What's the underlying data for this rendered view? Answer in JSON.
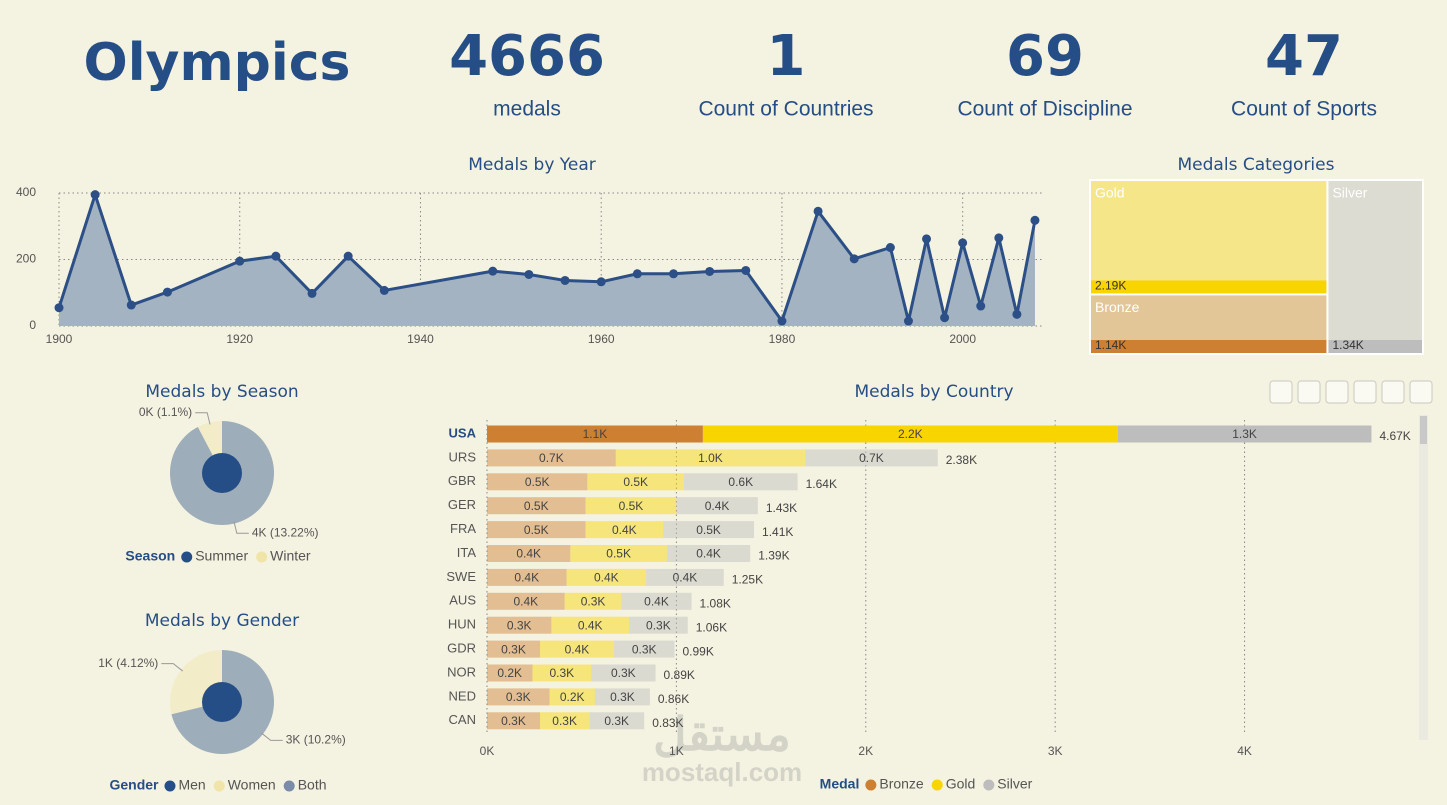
{
  "title": "Olympics",
  "kpis": [
    {
      "value": 4666,
      "label": "medals"
    },
    {
      "value": 1,
      "label": "Count of Countries"
    },
    {
      "value": 69,
      "label": "Count of Discipline"
    },
    {
      "value": 47,
      "label": "Count of Sports"
    }
  ],
  "watermark": [
    "مستقل",
    "mostaql.com"
  ],
  "chart_data": [
    {
      "type": "line",
      "title": "Medals by Year",
      "x": [
        1900,
        1904,
        1908,
        1912,
        1920,
        1924,
        1928,
        1932,
        1936,
        1948,
        1952,
        1956,
        1960,
        1964,
        1968,
        1972,
        1976,
        1980,
        1984,
        1988,
        1992,
        1994,
        1996,
        1998,
        2000,
        2002,
        2004,
        2006,
        2008
      ],
      "values": [
        55,
        395,
        63,
        102,
        195,
        210,
        98,
        210,
        107,
        165,
        155,
        137,
        133,
        157,
        157,
        164,
        167,
        15,
        345,
        202,
        236,
        15,
        262,
        25,
        250,
        60,
        265,
        35,
        318
      ],
      "color": "#2b4f86",
      "fill": "#a3b3c1",
      "xlim": [
        1900,
        2009
      ],
      "ylim": [
        0,
        400
      ],
      "xticks": [
        1900,
        1920,
        1940,
        1960,
        1980,
        2000
      ],
      "yticks": [
        0,
        200,
        400
      ],
      "grid": true
    },
    {
      "type": "treemap",
      "title": "Medals Categories",
      "categories": [
        "Gold",
        "Silver",
        "Bronze"
      ],
      "values": [
        2190,
        1340,
        1140
      ],
      "value_labels": [
        "2.19K",
        "1.34K",
        "1.14K"
      ],
      "colors": [
        "#f5e68a",
        "#dcdcd2",
        "#e2c697"
      ],
      "accent_colors": [
        "#f8d400",
        "#bdbdbd",
        "#cd7f32"
      ]
    },
    {
      "type": "pie",
      "title": "Medals by Season",
      "legend_title": "Season",
      "categories": [
        "Summer",
        "Winter"
      ],
      "values": [
        13.22,
        1.1
      ],
      "value_labels": [
        "4K (13.22%)",
        "0K (1.1%)"
      ],
      "colors": [
        "#264e86",
        "#f0e4a8"
      ]
    },
    {
      "type": "pie",
      "title": "Medals by Gender",
      "legend_title": "Gender",
      "categories": [
        "Men",
        "Women",
        "Both"
      ],
      "values": [
        10.2,
        4.12,
        null
      ],
      "value_labels": [
        "3K (10.2%)",
        "1K (4.12%)",
        null
      ],
      "colors": [
        "#264e86",
        "#f0e4a8",
        "#7a8ca8"
      ]
    },
    {
      "type": "bar",
      "orientation": "horizontal",
      "stacked": true,
      "title": "Medals by Country",
      "legend_title": "Medal",
      "categories": [
        "USA",
        "URS",
        "GBR",
        "GER",
        "FRA",
        "ITA",
        "SWE",
        "AUS",
        "HUN",
        "GDR",
        "NOR",
        "NED",
        "CAN"
      ],
      "selected": "USA",
      "series": [
        {
          "name": "Bronze",
          "color": "#cd7f32",
          "values": [
            1140,
            680,
            530,
            520,
            520,
            440,
            420,
            410,
            340,
            280,
            240,
            330,
            280
          ],
          "value_labels": [
            "1.1K",
            "0.7K",
            "0.5K",
            "0.5K",
            "0.5K",
            "0.4K",
            "0.4K",
            "0.4K",
            "0.3K",
            "0.3K",
            "0.2K",
            "0.3K",
            "0.3K"
          ]
        },
        {
          "name": "Gold",
          "color": "#f8d400",
          "values": [
            2190,
            1000,
            510,
            480,
            410,
            510,
            420,
            300,
            410,
            390,
            310,
            240,
            260
          ],
          "value_labels": [
            "2.2K",
            "1.0K",
            "0.5K",
            "0.5K",
            "0.4K",
            "0.5K",
            "0.4K",
            "0.3K",
            "0.4K",
            "0.4K",
            "0.3K",
            "0.2K",
            "0.3K"
          ]
        },
        {
          "name": "Silver",
          "color": "#bdbdbd",
          "values": [
            1340,
            700,
            600,
            430,
            480,
            440,
            410,
            370,
            310,
            320,
            340,
            290,
            290
          ],
          "value_labels": [
            "1.3K",
            "0.7K",
            "0.6K",
            "0.4K",
            "0.5K",
            "0.4K",
            "0.4K",
            "0.4K",
            "0.3K",
            "0.3K",
            "0.3K",
            "0.3K",
            "0.3K"
          ]
        }
      ],
      "totals": [
        4670,
        2380,
        1640,
        1430,
        1410,
        1390,
        1250,
        1080,
        1060,
        990,
        890,
        860,
        830
      ],
      "total_labels": [
        "4.67K",
        "2.38K",
        "1.64K",
        "1.43K",
        "1.41K",
        "1.39K",
        "1.25K",
        "1.08K",
        "1.06K",
        "0.99K",
        "0.89K",
        "0.86K",
        "0.83K"
      ],
      "xlim": [
        0,
        4900
      ],
      "xticks": [
        {
          "value": 0,
          "label": "0K"
        },
        {
          "value": 1000,
          "label": "1K"
        },
        {
          "value": 2000,
          "label": "2K"
        },
        {
          "value": 3000,
          "label": "3K"
        },
        {
          "value": 4000,
          "label": "4K"
        }
      ],
      "grid": true
    }
  ]
}
